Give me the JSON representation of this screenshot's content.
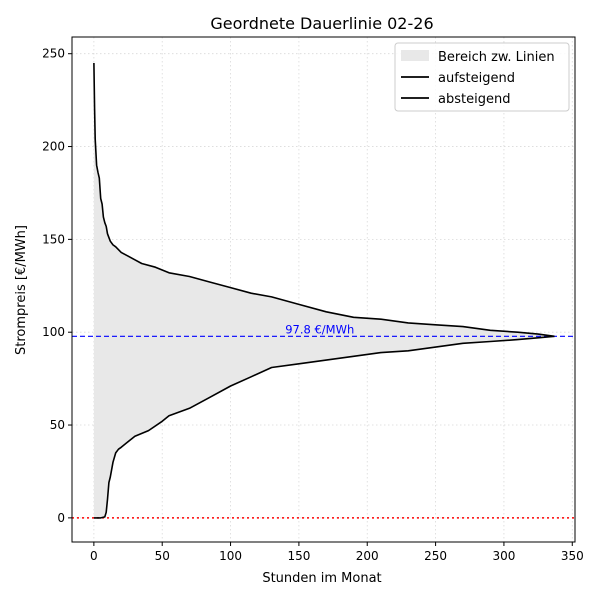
{
  "chart_data": {
    "type": "area",
    "title": "Geordnete Dauerlinie 02-26",
    "xlabel": "Stunden im Monat",
    "ylabel": "Strompreis [€/MWh]",
    "xlim": [
      -16,
      352
    ],
    "ylim": [
      -13,
      259
    ],
    "xticks": [
      0,
      50,
      100,
      150,
      200,
      250,
      300,
      350
    ],
    "yticks": [
      0,
      50,
      100,
      150,
      200,
      250
    ],
    "grid": true,
    "legend_position": "top-right",
    "legend": {
      "fill_label": "Bereich zw. Linien",
      "ascending_label": "aufsteigend",
      "descending_label": "absteigend"
    },
    "fill_color": "#e8e8e8",
    "line_color": "#000000",
    "mean_line": {
      "value": 97.8,
      "label": "97.8 €/MWh",
      "color": "#0000ff"
    },
    "zero_line": {
      "value": 0,
      "color": "#ff0000"
    },
    "series": [
      {
        "name": "absteigend",
        "x": [
          0,
          0.5,
          1,
          2,
          3,
          4,
          5,
          6,
          7,
          8,
          9,
          10,
          12,
          14,
          16,
          20,
          25,
          30,
          35,
          45,
          55,
          70,
          85,
          100,
          115,
          130,
          150,
          170,
          190,
          210,
          230,
          250,
          270,
          290,
          310,
          325,
          337
        ],
        "y": [
          245,
          220,
          204,
          190,
          186,
          183,
          172,
          169,
          162,
          159,
          157,
          153,
          149,
          147,
          146,
          143,
          141,
          139,
          137,
          135,
          132,
          130,
          127,
          124,
          121,
          119,
          115,
          111,
          108,
          107,
          105,
          104,
          103,
          101,
          100,
          99,
          97.8
        ]
      },
      {
        "name": "aufsteigend",
        "x": [
          0,
          5,
          8,
          9,
          10,
          11,
          12,
          14,
          16,
          18,
          20,
          25,
          30,
          40,
          50,
          55,
          70,
          85,
          100,
          115,
          130,
          150,
          170,
          190,
          210,
          230,
          250,
          270,
          290,
          310,
          325,
          337
        ],
        "y": [
          0,
          0,
          0.5,
          3,
          10,
          19,
          22,
          30,
          35,
          37,
          38,
          41,
          44,
          47,
          52,
          55,
          59,
          65,
          71,
          76,
          81,
          83,
          85,
          87,
          89,
          90,
          92,
          94,
          95,
          96,
          97,
          97.8
        ]
      }
    ]
  }
}
